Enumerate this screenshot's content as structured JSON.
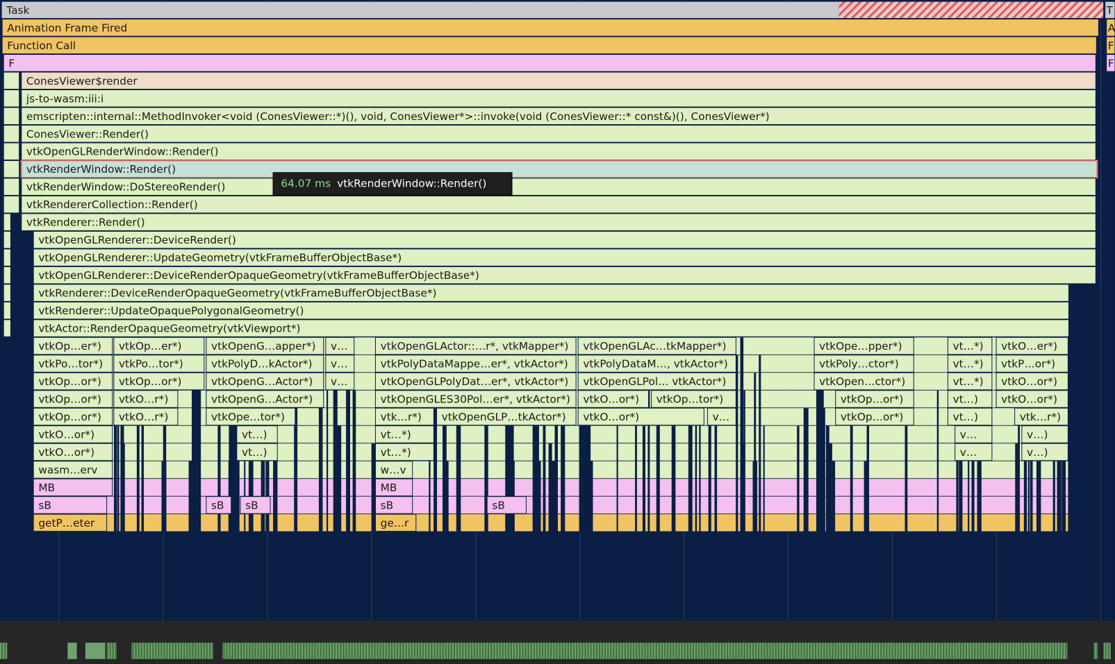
{
  "rows": [
    {
      "blocks": [
        {
          "label": "Task"
        },
        {
          "label": "T"
        }
      ]
    },
    {
      "blocks": [
        {
          "label": "Animation Frame Fired"
        },
        {
          "label": "A"
        }
      ]
    },
    {
      "blocks": [
        {
          "label": "Function Call"
        },
        {
          "label": "F"
        }
      ]
    },
    {
      "blocks": [
        {
          "label": "F"
        },
        {
          "label": "F"
        }
      ]
    },
    {
      "blocks": [
        {
          "label": "ConesViewer$render"
        }
      ]
    },
    {
      "blocks": [
        {
          "label": "js-to-wasm:iii:i"
        }
      ]
    },
    {
      "blocks": [
        {
          "label": "emscripten::internal::MethodInvoker<void (ConesViewer::*)(), void, ConesViewer*>::invoke(void (ConesViewer::* const&)(), ConesViewer*)"
        }
      ]
    },
    {
      "blocks": [
        {
          "label": "ConesViewer::Render()"
        }
      ]
    },
    {
      "blocks": [
        {
          "label": "vtkOpenGLRenderWindow::Render()"
        }
      ]
    },
    {
      "blocks": [
        {
          "label": "vtkRenderWindow::Render()"
        }
      ]
    },
    {
      "blocks": [
        {
          "label": "vtkRenderWindow::DoStereoRender()"
        }
      ]
    },
    {
      "blocks": [
        {
          "label": "vtkRendererCollection::Render()"
        }
      ]
    },
    {
      "blocks": [
        {
          "label": "vtkRenderer::Render()"
        }
      ]
    },
    {
      "blocks": [
        {
          "label": "vtkOpenGLRenderer::DeviceRender()"
        }
      ]
    },
    {
      "blocks": [
        {
          "label": "vtkOpenGLRenderer::UpdateGeometry(vtkFrameBufferObjectBase*)"
        }
      ]
    },
    {
      "blocks": [
        {
          "label": "vtkOpenGLRenderer::DeviceRenderOpaqueGeometry(vtkFrameBufferObjectBase*)"
        }
      ]
    },
    {
      "blocks": [
        {
          "label": "vtkRenderer::DeviceRenderOpaqueGeometry(vtkFrameBufferObjectBase*)"
        }
      ]
    },
    {
      "blocks": [
        {
          "label": "vtkRenderer::UpdateOpaquePolygonalGeometry()"
        }
      ]
    },
    {
      "blocks": [
        {
          "label": "vtkActor::RenderOpaqueGeometry(vtkViewport*)"
        }
      ]
    },
    {
      "blocks": [
        {
          "label": "vtkOp…er*)"
        },
        {
          "label": "vtkOp…er*)"
        },
        {
          "label": "vtkOpenG…apper*)"
        },
        {
          "label": "v…"
        },
        {
          "label": "vtkOpenGLActor::…r*, vtkMapper*)"
        },
        {
          "label": "vtkOpenGLAc…tkMapper*)"
        },
        {
          "label": "vtkOpe…pper*)"
        },
        {
          "label": "vt…*)"
        },
        {
          "label": "vtkO…er*)"
        }
      ]
    },
    {
      "blocks": [
        {
          "label": "vtkPo…tor*)"
        },
        {
          "label": "vtkPo…tor*)"
        },
        {
          "label": "vtkPolyD…kActor*)"
        },
        {
          "label": "v…"
        },
        {
          "label": "vtkPolyDataMappe…er*, vtkActor*)"
        },
        {
          "label": "vtkPolyDataM…, vtkActor*)"
        },
        {
          "label": "vtkPoly…ctor*)"
        },
        {
          "label": "vt…*)"
        },
        {
          "label": "vtkP…or*)"
        }
      ]
    },
    {
      "blocks": [
        {
          "label": "vtkOp…or*)"
        },
        {
          "label": "vtkOp…or*)"
        },
        {
          "label": "vtkOpenG…Actor*)"
        },
        {
          "label": "v…"
        },
        {
          "label": "vtkOpenGLPolyDat…er*, vtkActor*)"
        },
        {
          "label": "vtkOpenGLPol… vtkActor*)"
        },
        {
          "label": "vtkOpen…ctor*)"
        },
        {
          "label": "vt…*)"
        },
        {
          "label": "vtkO…or*)"
        }
      ]
    },
    {
      "blocks": [
        {
          "label": "vtkOp…or*)"
        },
        {
          "label": "vtkO…r*)"
        },
        {
          "label": "vtkOpenG…Actor*)"
        },
        {
          "label": "vtkOpenGLES30Pol…er*, vtkActor*)"
        },
        {
          "label": "vtkO…or*)"
        },
        {
          "label": "vtkOp…tor*)"
        },
        {
          "label": "vtkOp…or*)"
        },
        {
          "label": "vt…)"
        },
        {
          "label": "vtkO…or*)"
        }
      ]
    },
    {
      "blocks": [
        {
          "label": "vtkOp…or*)"
        },
        {
          "label": "vtkO…r*)"
        },
        {
          "label": "vtkOpe…tor*)"
        },
        {
          "label": "vtk…r*)"
        },
        {
          "label": "vtkOpenGLP…tkActor*)"
        },
        {
          "label": "vtkO…or*)"
        },
        {
          "label": "v…"
        },
        {
          "label": "vtkOp…or*)"
        },
        {
          "label": "vt…)"
        },
        {
          "label": "vtk…r*)"
        }
      ]
    },
    {
      "blocks": [
        {
          "label": "vtkO…or*)"
        },
        {
          "label": "vt…)"
        },
        {
          "label": "vt…*)"
        },
        {
          "label": "v…"
        },
        {
          "label": "v…)"
        }
      ]
    },
    {
      "blocks": [
        {
          "label": "vtkO…or*)"
        },
        {
          "label": "vt…)"
        },
        {
          "label": "vt…*)"
        },
        {
          "label": "v…"
        },
        {
          "label": "v…)"
        }
      ]
    },
    {
      "blocks": [
        {
          "label": "wasm…erv"
        },
        {
          "label": "w…v"
        }
      ]
    },
    {
      "blocks": [
        {
          "label": "MB"
        },
        {
          "label": "MB"
        }
      ]
    },
    {
      "blocks": [
        {
          "label": "sB"
        },
        {
          "label": "sB"
        },
        {
          "label": "sB"
        },
        {
          "label": "sB"
        },
        {
          "label": "sB"
        }
      ]
    },
    {
      "blocks": [
        {
          "label": "getP…eter"
        },
        {
          "label": "ge…r"
        }
      ]
    }
  ],
  "tooltip": {
    "duration": "64.07 ms",
    "name": "vtkRenderWindow::Render()"
  }
}
